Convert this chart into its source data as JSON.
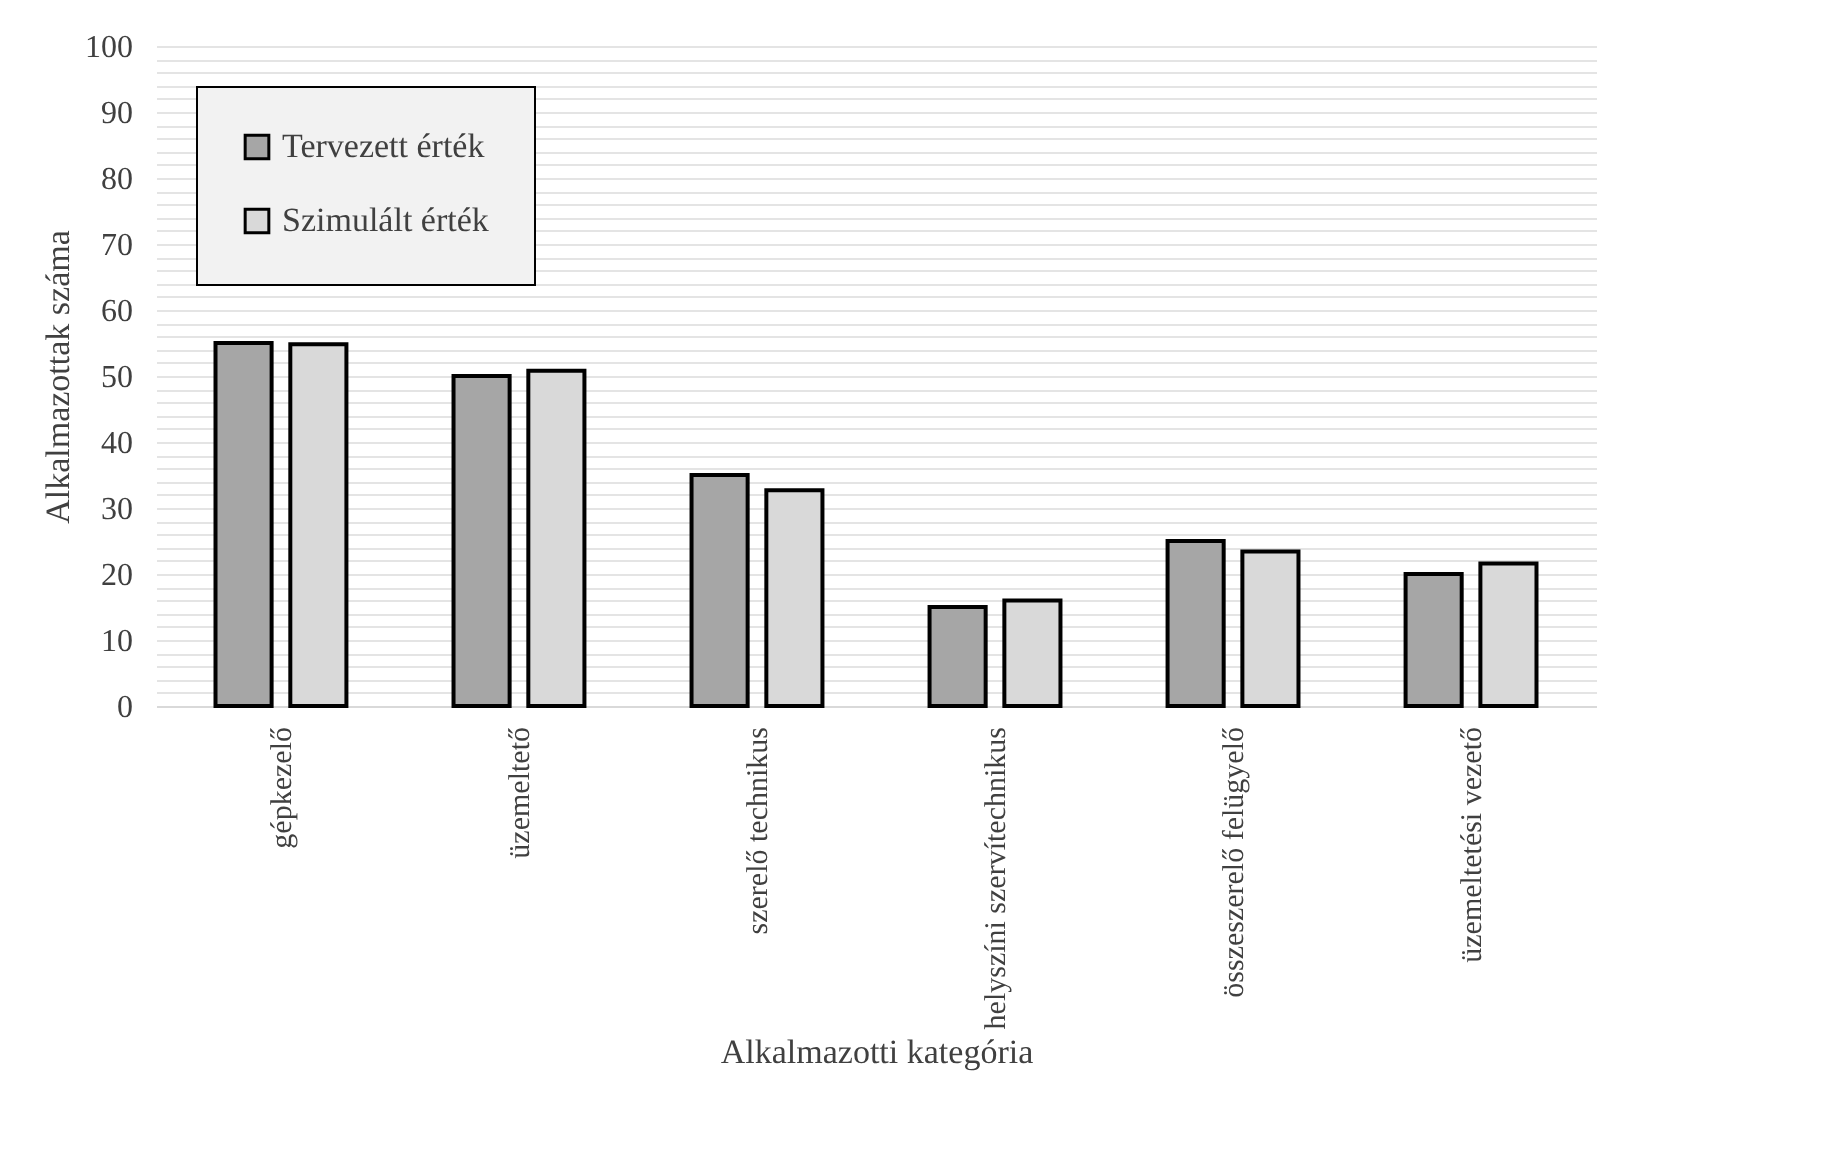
{
  "chart_data": {
    "type": "bar",
    "xlabel": "Alkalmazotti kategória",
    "ylabel": "Alkalmazottak száma",
    "categories": [
      "gépkezelő",
      "üzemeltető",
      "szerelő technikus",
      "helyszíni szervítechnikus",
      "összeszerelő felügyelő",
      "üzemeltetési vezető"
    ],
    "series": [
      {
        "name": "Tervezett érték",
        "color": "#a6a6a6",
        "values": [
          55,
          50,
          35,
          15,
          25,
          20
        ]
      },
      {
        "name": "Szimulált érték",
        "color": "#d9d9d9",
        "values": [
          54.8,
          50.8,
          32.7,
          16,
          23.4,
          21.6
        ]
      }
    ],
    "ylim": [
      0,
      100
    ],
    "yticks": [
      0,
      {
        "value": 2,
        "label": null
      },
      {
        "value": 4,
        "label": null
      },
      {
        "value": 6,
        "label": null
      },
      {
        "value": 8,
        "label": null
      },
      10,
      {
        "value": 12,
        "label": null
      },
      {
        "value": 14,
        "label": null
      },
      {
        "value": 16,
        "label": null
      },
      {
        "value": 18,
        "label": null
      },
      20,
      {
        "value": 22,
        "label": null
      },
      {
        "value": 24,
        "label": null
      },
      {
        "value": 26,
        "label": null
      },
      {
        "value": 28,
        "label": null
      },
      30,
      {
        "value": 32,
        "label": null
      },
      {
        "value": 34,
        "label": null
      },
      {
        "value": 36,
        "label": null
      },
      {
        "value": 38,
        "label": null
      },
      40,
      {
        "value": 42,
        "label": null
      },
      {
        "value": 44,
        "label": null
      },
      {
        "value": 46,
        "label": null
      },
      {
        "value": 48,
        "label": null
      },
      50,
      {
        "value": 52,
        "label": null
      },
      {
        "value": 54,
        "label": null
      },
      {
        "value": 56,
        "label": null
      },
      {
        "value": 58,
        "label": null
      },
      60,
      {
        "value": 62,
        "label": null
      },
      {
        "value": 64,
        "label": null
      },
      {
        "value": 66,
        "label": null
      },
      {
        "value": 68,
        "label": null
      },
      70,
      {
        "value": 72,
        "label": null
      },
      {
        "value": 74,
        "label": null
      },
      {
        "value": 76,
        "label": null
      },
      {
        "value": 78,
        "label": null
      },
      80,
      {
        "value": 82,
        "label": null
      },
      {
        "value": 84,
        "label": null
      },
      {
        "value": 86,
        "label": null
      },
      {
        "value": 88,
        "label": null
      },
      90,
      {
        "value": 92,
        "label": null
      },
      {
        "value": 94,
        "label": null
      },
      {
        "value": 96,
        "label": null
      },
      {
        "value": 98,
        "label": null
      },
      100
    ],
    "grid": "y",
    "legend": "top left"
  }
}
